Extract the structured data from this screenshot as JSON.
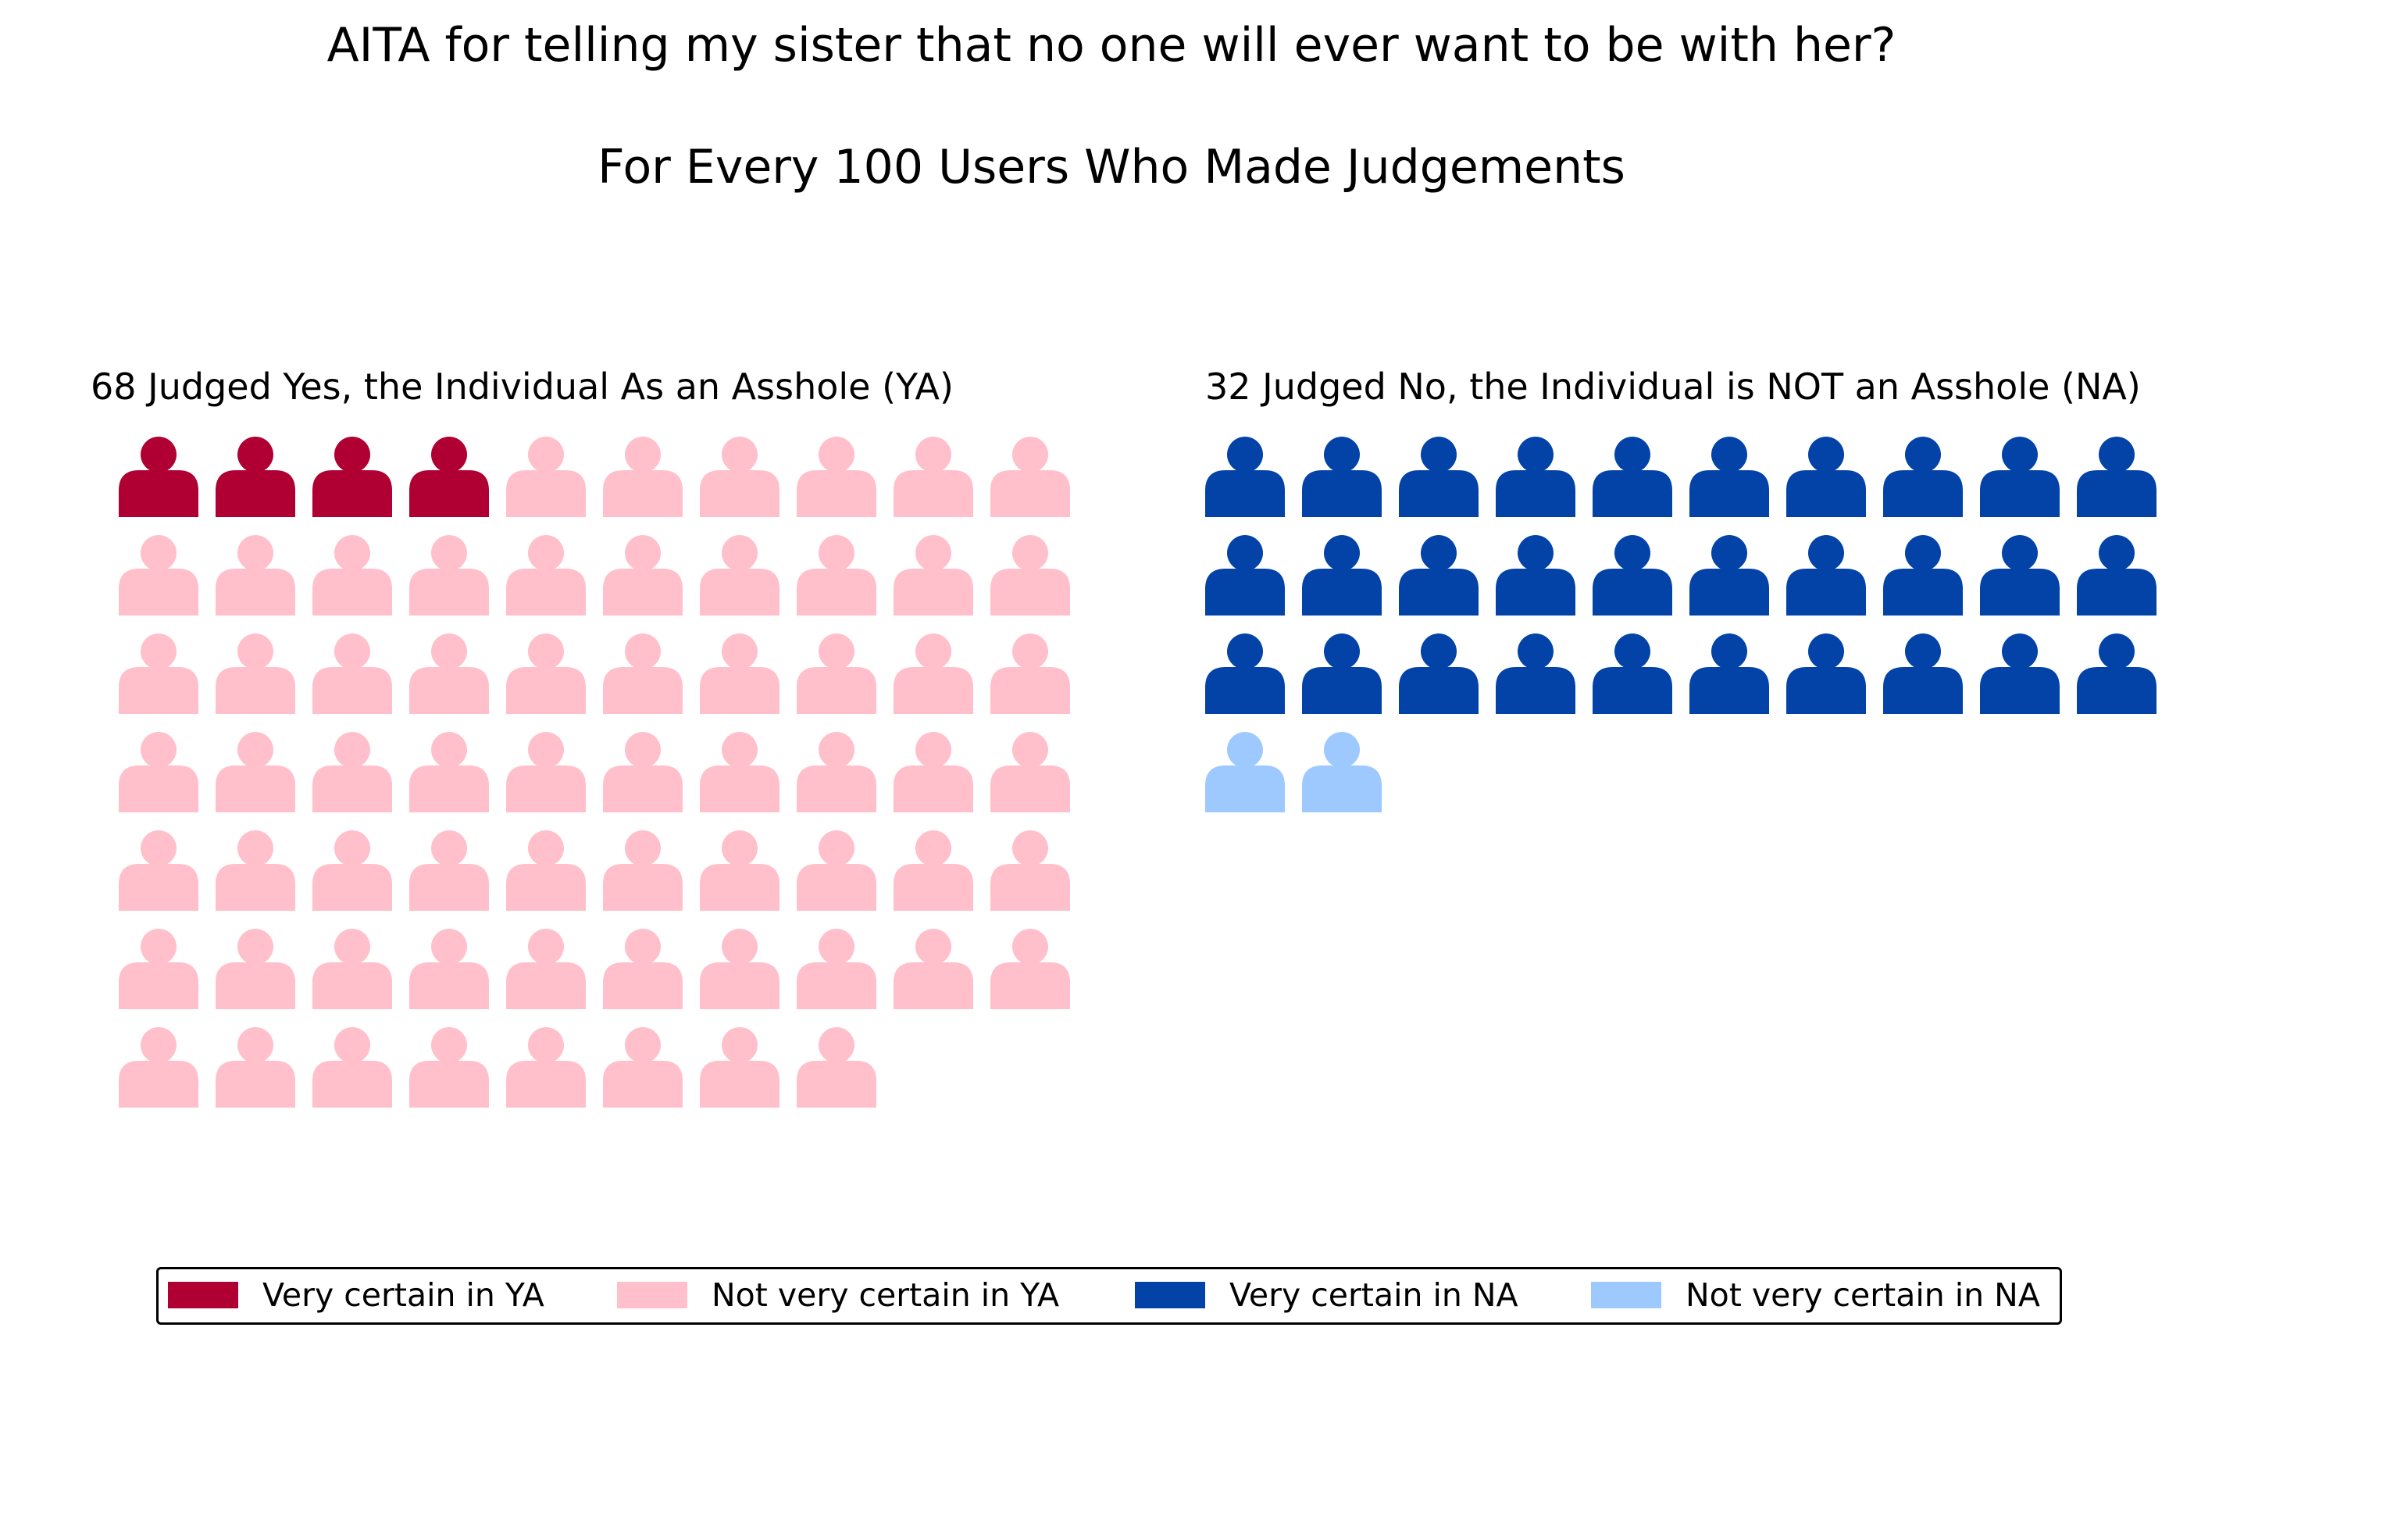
{
  "title": "AITA for telling my sister that no one will ever want to be with her?",
  "subtitle": "For Every 100 Users Who Made Judgements",
  "chart_data": [
    {
      "type": "pictogram",
      "title": "68 Judged Yes, the Individual As an Asshole (YA)",
      "total": 68,
      "icons_per_row": 10,
      "icon": "person-icon",
      "segments": [
        {
          "name": "Very certain in YA",
          "count": 4,
          "color": "#b00033"
        },
        {
          "name": "Not very certain in YA",
          "count": 64,
          "color": "#ffc0cb"
        }
      ]
    },
    {
      "type": "pictogram",
      "title": "32 Judged No, the Individual is NOT an Asshole (NA)",
      "total": 32,
      "icons_per_row": 10,
      "icon": "person-icon",
      "segments": [
        {
          "name": "Very certain in NA",
          "count": 30,
          "color": "#0343a8"
        },
        {
          "name": "Not very certain in NA",
          "count": 2,
          "color": "#9ec9ff"
        }
      ]
    }
  ],
  "legend": {
    "placement": "bottom",
    "items": [
      {
        "label": "Very certain in YA",
        "color": "#b00033"
      },
      {
        "label": "Not very certain in YA",
        "color": "#ffc0cb"
      },
      {
        "label": "Very certain in NA",
        "color": "#0343a8"
      },
      {
        "label": "Not very certain in NA",
        "color": "#9ec9ff"
      }
    ]
  }
}
